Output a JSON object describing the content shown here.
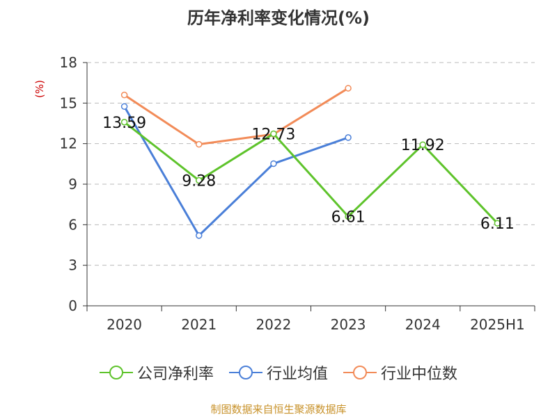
{
  "chart_data": {
    "type": "line",
    "title": "历年净利率变化情况(%)",
    "ylabel": "(%)",
    "xlabel": "",
    "categories": [
      "2020",
      "2021",
      "2022",
      "2023",
      "2024",
      "2025H1"
    ],
    "ylim": [
      0,
      18
    ],
    "yticks": [
      0,
      3,
      6,
      9,
      12,
      15,
      18
    ],
    "grid": true,
    "legend_position": "bottom",
    "series": [
      {
        "name": "公司净利率",
        "color": "#5ec32b",
        "values": [
          13.59,
          9.28,
          12.73,
          6.61,
          11.92,
          6.11
        ],
        "labels": [
          "13.59",
          "9.28",
          "12.73",
          "6.61",
          "11.92",
          "6.11"
        ]
      },
      {
        "name": "行业均值",
        "color": "#4a7fd8",
        "values": [
          14.75,
          5.2,
          10.52,
          12.45,
          null,
          null
        ]
      },
      {
        "name": "行业中位数",
        "color": "#f28b58",
        "values": [
          15.6,
          11.95,
          12.7,
          16.1,
          null,
          null
        ]
      }
    ]
  },
  "source_text": "制图数据来自恒生聚源数据库"
}
